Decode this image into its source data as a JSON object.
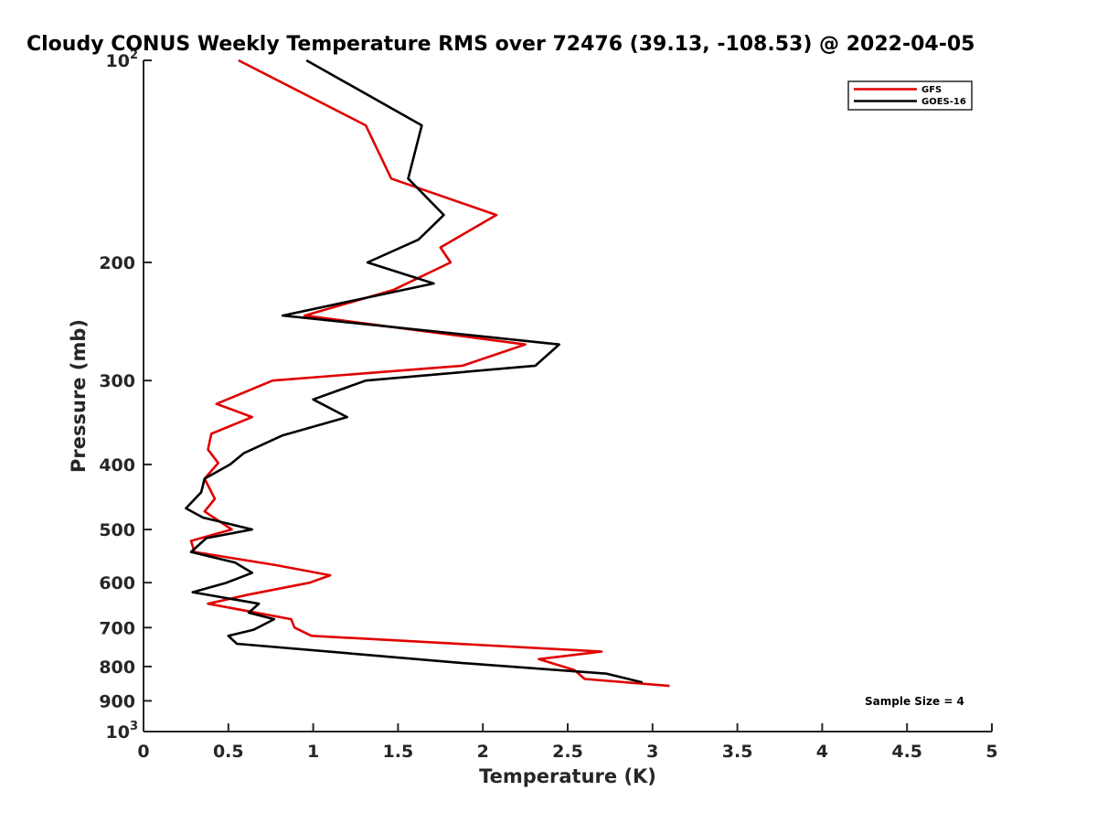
{
  "chart_data": {
    "type": "line",
    "title": "Cloudy CONUS Weekly Temperature RMS over 72476 (39.13, -108.53) @ 2022-04-05",
    "xlabel": "Temperature (K)",
    "ylabel": "Pressure (mb)",
    "xlim": [
      0,
      5
    ],
    "ylim": [
      100,
      1000
    ],
    "y_scale": "log",
    "y_reversed": true,
    "grid": false,
    "legend_position": "top-right",
    "x_ticks": [
      "0",
      "0.5",
      "1",
      "1.5",
      "2",
      "2.5",
      "3",
      "3.5",
      "4",
      "4.5",
      "5"
    ],
    "y_ticks": [
      {
        "value": 100,
        "label": "10",
        "sup": "2"
      },
      {
        "value": 200,
        "label": "200"
      },
      {
        "value": 300,
        "label": "300"
      },
      {
        "value": 400,
        "label": "400"
      },
      {
        "value": 500,
        "label": "500"
      },
      {
        "value": 600,
        "label": "600"
      },
      {
        "value": 700,
        "label": "700"
      },
      {
        "value": 800,
        "label": "800"
      },
      {
        "value": 900,
        "label": "900"
      },
      {
        "value": 1000,
        "label": "10",
        "sup": "3"
      }
    ],
    "series": [
      {
        "name": "GFS",
        "color": "#e00000",
        "points": [
          [
            0.56,
            100
          ],
          [
            1.31,
            125
          ],
          [
            1.46,
            150
          ],
          [
            2.08,
            170
          ],
          [
            1.75,
            190
          ],
          [
            1.81,
            200
          ],
          [
            1.47,
            220
          ],
          [
            0.95,
            240
          ],
          [
            2.25,
            265
          ],
          [
            1.88,
            285
          ],
          [
            0.76,
            300
          ],
          [
            0.43,
            325
          ],
          [
            0.64,
            340
          ],
          [
            0.4,
            360
          ],
          [
            0.38,
            380
          ],
          [
            0.44,
            398
          ],
          [
            0.36,
            420
          ],
          [
            0.42,
            450
          ],
          [
            0.36,
            470
          ],
          [
            0.52,
            500
          ],
          [
            0.28,
            520
          ],
          [
            0.3,
            540
          ],
          [
            0.78,
            565
          ],
          [
            1.1,
            585
          ],
          [
            0.98,
            600
          ],
          [
            0.62,
            625
          ],
          [
            0.38,
            645
          ],
          [
            0.87,
            680
          ],
          [
            0.89,
            700
          ],
          [
            0.99,
            720
          ],
          [
            2.7,
            760
          ],
          [
            2.33,
            780
          ],
          [
            2.54,
            810
          ],
          [
            2.6,
            835
          ],
          [
            3.1,
            855
          ]
        ]
      },
      {
        "name": "GOES-16",
        "color": "#000000",
        "points": [
          [
            0.96,
            100
          ],
          [
            1.64,
            125
          ],
          [
            1.56,
            150
          ],
          [
            1.77,
            170
          ],
          [
            1.62,
            185
          ],
          [
            1.32,
            200
          ],
          [
            1.71,
            215
          ],
          [
            0.82,
            240
          ],
          [
            2.45,
            265
          ],
          [
            2.31,
            285
          ],
          [
            1.31,
            300
          ],
          [
            1.0,
            320
          ],
          [
            1.2,
            340
          ],
          [
            0.82,
            362
          ],
          [
            0.59,
            385
          ],
          [
            0.51,
            400
          ],
          [
            0.36,
            420
          ],
          [
            0.34,
            440
          ],
          [
            0.25,
            465
          ],
          [
            0.35,
            480
          ],
          [
            0.64,
            500
          ],
          [
            0.37,
            515
          ],
          [
            0.28,
            540
          ],
          [
            0.54,
            560
          ],
          [
            0.64,
            580
          ],
          [
            0.49,
            600
          ],
          [
            0.29,
            620
          ],
          [
            0.68,
            645
          ],
          [
            0.62,
            665
          ],
          [
            0.77,
            680
          ],
          [
            0.65,
            705
          ],
          [
            0.5,
            720
          ],
          [
            0.55,
            740
          ],
          [
            1.87,
            790
          ],
          [
            2.73,
            820
          ],
          [
            2.94,
            845
          ]
        ]
      }
    ],
    "annotations": [
      {
        "text": "Sample Size = 4",
        "position": "bottom-right"
      }
    ]
  }
}
